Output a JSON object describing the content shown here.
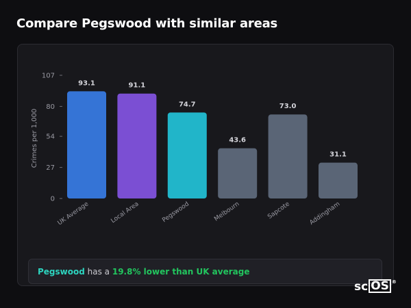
{
  "page": {
    "title": "Compare Pegswood with similar areas"
  },
  "summary": {
    "area": "Pegswood",
    "connector": " has a ",
    "comparison": "19.8% lower than UK average"
  },
  "logo": {
    "prefix": "sc",
    "boxed": "OS",
    "mark": "®"
  },
  "colors": {
    "uk_average": "#3574d6",
    "local_area": "#7b4fd3",
    "highlight": "#21b5c9",
    "neighbour": "#5a6576",
    "positive": "#22c55e",
    "area_name": "#2dd4bf"
  },
  "chart_data": {
    "type": "bar",
    "ylabel": "Crimes per 1,000",
    "ylim": [
      0,
      107
    ],
    "yticks": [
      0,
      27,
      54,
      80,
      107
    ],
    "grid": false,
    "categories": [
      "UK Average",
      "Local Area",
      "Pegswood",
      "Melbourn",
      "Sapcote",
      "Addingham"
    ],
    "values": [
      93.1,
      91.1,
      74.7,
      43.6,
      73.0,
      31.1
    ],
    "value_labels": [
      "93.1",
      "91.1",
      "74.7",
      "43.6",
      "73.0",
      "31.1"
    ],
    "bar_colors": [
      "#3574d6",
      "#7b4fd3",
      "#21b5c9",
      "#5a6576",
      "#5a6576",
      "#5a6576"
    ]
  }
}
